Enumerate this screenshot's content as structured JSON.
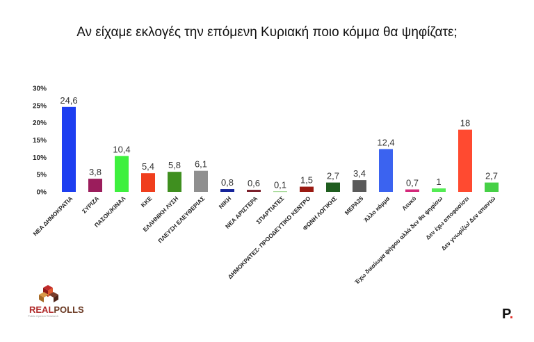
{
  "chart_data": {
    "type": "bar",
    "title": "Αν είχαμε εκλογές την επόμενη Κυριακή ποιο κόμμα θα ψηφίζατε;",
    "categories": [
      "ΝΕΑ ΔΗΜΟΚΡΑΤΙΑ",
      "ΣΥΡΙΖΑ",
      "ΠΑΣΟΚ/ΚΙΝΑΛ",
      "ΚΚΕ",
      "ΕΛΛΗΝΙΚΗ ΛΥΣΗ",
      "ΠΛΕΥΣΗ ΕΛΕΥΘΕΡΙΑΣ",
      "ΝΙΚΗ",
      "ΝΕΑ ΑΡΙΣΤΕΡΑ",
      "ΣΠΑΡΤΙΑΤΕΣ",
      "ΔΗΜΟΚΡΑΤΕΣ- ΠΡΟΟΔΕΥΤΙΚΟ ΚΕΝΤΡΟ",
      "ΦΩΝΗ ΛΟΓΙΚΗΣ",
      "ΜΕΡΑ25",
      "Άλλο κόμμα",
      "Λευκό",
      "Έχω δικαίωμα ψήφου αλλά δεν θα ψηφίσω",
      "Δεν έχω αποφασίσει",
      "Δεν γνωρίζω/ Δεν απαντώ"
    ],
    "values": [
      24.6,
      3.8,
      10.4,
      5.4,
      5.8,
      6.1,
      0.8,
      0.6,
      0.1,
      1.5,
      2.7,
      3.4,
      12.4,
      0.7,
      1,
      18,
      2.7
    ],
    "value_labels": [
      "24,6",
      "3,8",
      "10,4",
      "5,4",
      "5,8",
      "6,1",
      "0,8",
      "0,6",
      "0,1",
      "1,5",
      "2,7",
      "3,4",
      "12,4",
      "0,7",
      "1",
      "18",
      "2,7"
    ],
    "colors": [
      "#1d3ef0",
      "#9b1d5c",
      "#3ef03e",
      "#f03e1d",
      "#3f8f1f",
      "#8f8f8f",
      "#16249a",
      "#7a1f2a",
      "#56b83b",
      "#9a1a12",
      "#1f5d1f",
      "#5a5a5a",
      "#3b63f0",
      "#d4287a",
      "#54ec54",
      "#ff4a30",
      "#46d046"
    ],
    "ylim": [
      0,
      30
    ],
    "yticks": [
      "0%",
      "5%",
      "10%",
      "15%",
      "20%",
      "25%",
      "30%"
    ],
    "grid": false
  },
  "logo": {
    "name": "REALPOLLS",
    "part1": "REAL",
    "part2": "POLLS",
    "tagline": "Public Opinion Research"
  },
  "brand_mark": {
    "letter": "P",
    "dot": "."
  }
}
